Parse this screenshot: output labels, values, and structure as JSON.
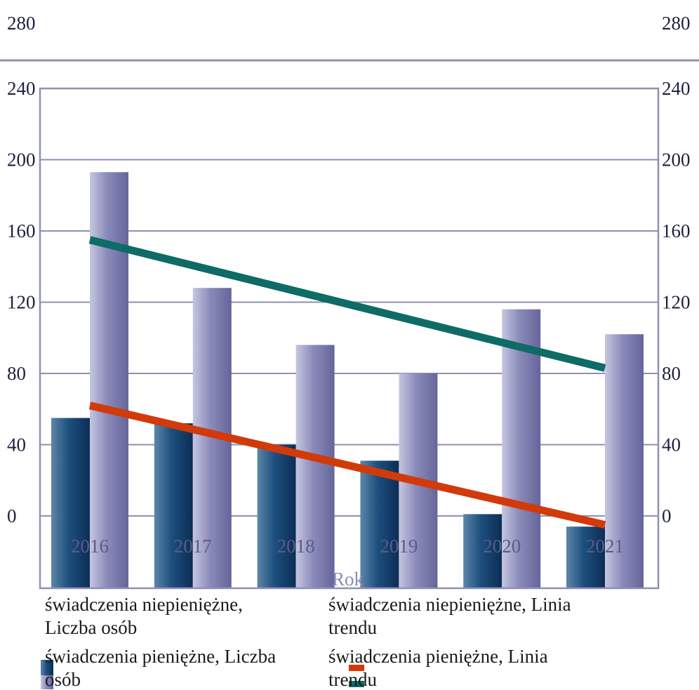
{
  "chart_data": {
    "type": "bar",
    "categories": [
      "2016",
      "2017",
      "2018",
      "2019",
      "2020",
      "2021"
    ],
    "series": [
      {
        "name": "świadczenia niepieniężne, Liczba osób",
        "values": [
          55,
          52,
          40,
          31,
          1,
          -6
        ],
        "color": "#1d4f7e"
      },
      {
        "name": "świadczenia pieniężne, Liczba osób",
        "values": [
          193,
          128,
          96,
          80,
          116,
          102
        ],
        "color": "#8c8cbc"
      }
    ],
    "trendlines": [
      {
        "name": "świadczenia niepieniężne, Linia trendu",
        "from": 62,
        "to": -5,
        "color": "#d23a0a"
      },
      {
        "name": "świadczenia pieniężne, Linia trendu",
        "from": 155,
        "to": 83,
        "color": "#0e6b65"
      }
    ],
    "xlabel": "Rok",
    "ylabel": "",
    "ylim": [
      -40,
      280
    ],
    "yticks_left": [
      "280",
      "240",
      "200",
      "160",
      "120",
      "80",
      "40",
      "0"
    ],
    "yticks_right": [
      "280",
      "240",
      "200",
      "160",
      "120",
      "80",
      "40",
      "0"
    ],
    "grid": true,
    "legend_position": "bottom"
  }
}
